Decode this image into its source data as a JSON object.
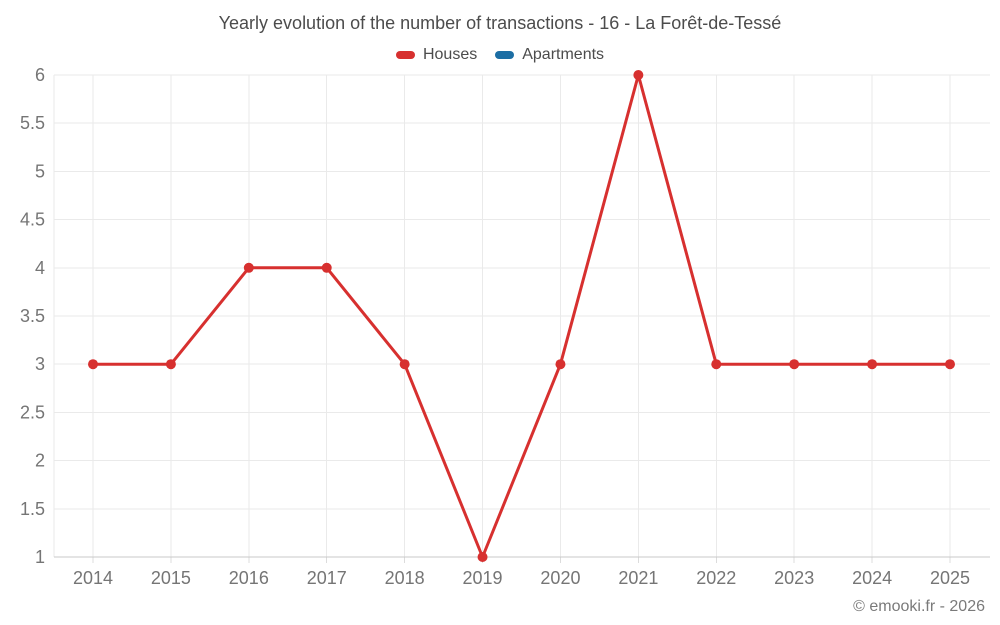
{
  "chart_data": {
    "type": "line",
    "title": "Yearly evolution of the number of transactions - 16 - La Forêt-de-Tessé",
    "x": [
      2014,
      2015,
      2016,
      2017,
      2018,
      2019,
      2020,
      2021,
      2022,
      2023,
      2024,
      2025
    ],
    "series": [
      {
        "name": "Houses",
        "color": "#d7302f",
        "values": [
          3,
          3,
          4,
          4,
          3,
          1,
          3,
          6,
          3,
          3,
          3,
          3
        ]
      },
      {
        "name": "Apartments",
        "color": "#1c6ea4",
        "values": []
      }
    ],
    "xlabel": "",
    "ylabel": "",
    "ylim": [
      1,
      6
    ],
    "ytick_step": 0.5,
    "grid": true,
    "legend_position": "top"
  },
  "footer": {
    "text": "© emooki.fr - 2026"
  }
}
